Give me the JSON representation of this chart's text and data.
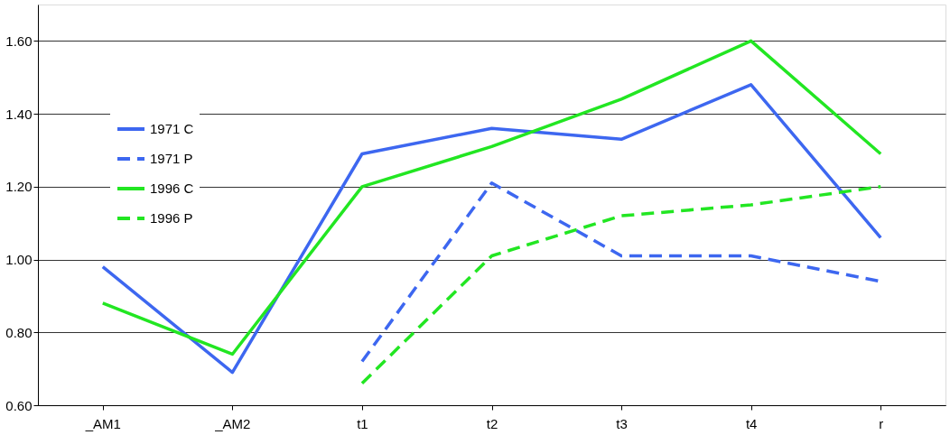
{
  "chart_data": {
    "type": "line",
    "categories": [
      "_AM1",
      "_AM2",
      "t1",
      "t2",
      "t3",
      "t4",
      "r"
    ],
    "series": [
      {
        "name": "1971 C",
        "color": "#3d67f0",
        "line_style": "solid",
        "values": [
          0.98,
          0.69,
          1.29,
          1.36,
          1.33,
          1.48,
          1.06
        ]
      },
      {
        "name": "1971 P",
        "color": "#3d67f0",
        "line_style": "dashed",
        "values": [
          null,
          null,
          0.72,
          1.21,
          1.01,
          1.01,
          0.94
        ]
      },
      {
        "name": "1996 C",
        "color": "#22e622",
        "line_style": "solid",
        "values": [
          0.88,
          0.74,
          1.2,
          1.31,
          1.44,
          1.6,
          1.29
        ]
      },
      {
        "name": "1996 P",
        "color": "#22e622",
        "line_style": "dashed",
        "values": [
          null,
          null,
          0.66,
          1.01,
          1.12,
          1.15,
          1.2
        ]
      }
    ],
    "ylim": [
      0.6,
      1.7
    ],
    "yticks": [
      {
        "value": 0.6,
        "label": "0.60"
      },
      {
        "value": 0.8,
        "label": "0.80"
      },
      {
        "value": 1.0,
        "label": "1.00"
      },
      {
        "value": 1.2,
        "label": "1.20"
      },
      {
        "value": 1.4,
        "label": "1.40"
      },
      {
        "value": 1.6,
        "label": "1.60"
      }
    ],
    "grid": "y",
    "legend": "top left",
    "marker": "none"
  }
}
